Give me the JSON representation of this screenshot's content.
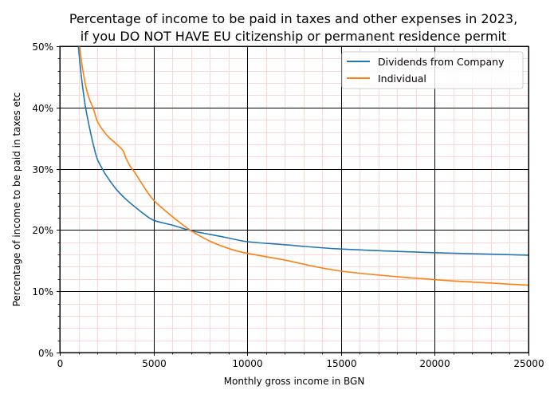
{
  "chart_data": {
    "type": "line",
    "title": "Percentage of income to be paid in taxes and other expenses in 2023,\nif you DO NOT HAVE EU citizenship or permanent residence permit",
    "title_lines": [
      "Percentage of income to be paid in taxes and other expenses in 2023,",
      "if you DO NOT HAVE EU citizenship or permanent residence permit"
    ],
    "xlabel": "Monthly gross income in BGN",
    "ylabel": "Percentage of income to be paid in taxes etc",
    "xlim": [
      0,
      25000
    ],
    "ylim": [
      0,
      50
    ],
    "x_ticks": [
      0,
      5000,
      10000,
      15000,
      20000,
      25000
    ],
    "x_tick_labels": [
      "0",
      "5000",
      "10000",
      "15000",
      "20000",
      "25000"
    ],
    "y_ticks": [
      0,
      10,
      20,
      30,
      40,
      50
    ],
    "y_tick_labels": [
      "0%",
      "10%",
      "20%",
      "30%",
      "40%",
      "50%"
    ],
    "x_minor_step": 1000,
    "y_minor_step": 2,
    "grid": {
      "major": true,
      "minor": true,
      "major_color": "#000000",
      "minor_color": "#ffd6d6"
    },
    "legend_position": "upper right",
    "series": [
      {
        "name": "Dividends from Company",
        "color": "#1f77b4",
        "x": [
          990,
          1100,
          1200,
          1375,
          1600,
          1800,
          2000,
          2270,
          2500,
          3000,
          3500,
          4000,
          4500,
          5000,
          6000,
          7000,
          8000,
          9000,
          10000,
          12000,
          15000,
          20000,
          25000
        ],
        "y": [
          50,
          46.5,
          43.8,
          40,
          36.5,
          33.8,
          31.6,
          30,
          28.8,
          26.7,
          25.1,
          23.8,
          22.6,
          21.6,
          20.8,
          19.9,
          19.3,
          18.7,
          18.1,
          17.6,
          16.9,
          16.3,
          15.9
        ]
      },
      {
        "name": "Individual",
        "color": "#ff7f0e",
        "x": [
          1060,
          1200,
          1400,
          1600,
          1770,
          2000,
          2300,
          2600,
          3000,
          3360,
          3550,
          3800,
          4000,
          4500,
          5000,
          6000,
          7000,
          8000,
          9000,
          10000,
          12000,
          15000,
          20000,
          25000
        ],
        "y": [
          50,
          46.7,
          43.3,
          41.2,
          40,
          37.8,
          36.3,
          35.2,
          34.1,
          33.0,
          31.6,
          30.2,
          29.4,
          27.0,
          24.9,
          22.2,
          19.9,
          18.2,
          17.0,
          16.2,
          15.1,
          13.3,
          11.9,
          11.0
        ]
      }
    ]
  }
}
